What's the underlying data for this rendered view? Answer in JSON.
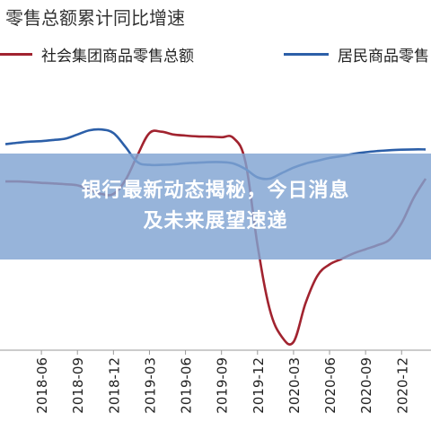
{
  "banner": {
    "line1": "银行最新动态揭秘，今日消息",
    "line2": "及未来展望速递"
  },
  "colors": {
    "series_red": "#a1232f",
    "series_blue": "#2c5fa8",
    "banner_bg": "#80a4d2"
  },
  "chart_data": {
    "type": "line",
    "title": "零售总额累计同比增速",
    "x": [
      "2018-03",
      "2018-04",
      "2018-05",
      "2018-06",
      "2018-07",
      "2018-08",
      "2018-09",
      "2018-10",
      "2018-11",
      "2018-12",
      "2019-01",
      "2019-02",
      "2019-03",
      "2019-04",
      "2019-05",
      "2019-06",
      "2019-07",
      "2019-08",
      "2019-09",
      "2019-10",
      "2019-11",
      "2019-12",
      "2020-01",
      "2020-02",
      "2020-03",
      "2020-04",
      "2020-05",
      "2020-06",
      "2020-07",
      "2020-08",
      "2020-09",
      "2020-10",
      "2020-11",
      "2020-12",
      "2021-01",
      "2021-02"
    ],
    "tick_labels": [
      "2018-06",
      "2018-09",
      "2018-12",
      "2019-03",
      "2019-06",
      "2019-09",
      "2019-12",
      "2020-03",
      "2020-06",
      "2020-09",
      "2020-12"
    ],
    "tick_index": [
      3,
      6,
      9,
      12,
      15,
      18,
      21,
      24,
      27,
      30,
      33
    ],
    "ylim": [
      0,
      100
    ],
    "series": [
      {
        "name": "社会集团商品零售总额",
        "color": "#a1232f",
        "values": [
          61,
          61,
          60.8,
          60.5,
          60.3,
          60,
          59.6,
          58,
          56.5,
          56.5,
          61.5,
          70.5,
          78.5,
          79,
          78,
          77.6,
          77.3,
          77.2,
          77,
          76.7,
          68,
          38,
          15,
          5,
          3,
          17,
          27,
          31,
          33,
          35,
          36.5,
          38,
          40,
          46,
          55,
          62
        ]
      },
      {
        "name": "居民商品零售",
        "color": "#2c5fa8",
        "values": [
          74.5,
          75,
          75.4,
          75.6,
          76,
          76.5,
          78,
          79.5,
          79.8,
          78.5,
          73.5,
          68,
          67,
          67,
          67.2,
          67.6,
          67.8,
          68,
          68,
          67.5,
          65.5,
          62.5,
          62,
          64,
          66,
          67.5,
          68.5,
          69.5,
          70.2,
          71,
          71.6,
          72,
          72.3,
          72.5,
          72.6,
          72.6
        ]
      }
    ]
  }
}
